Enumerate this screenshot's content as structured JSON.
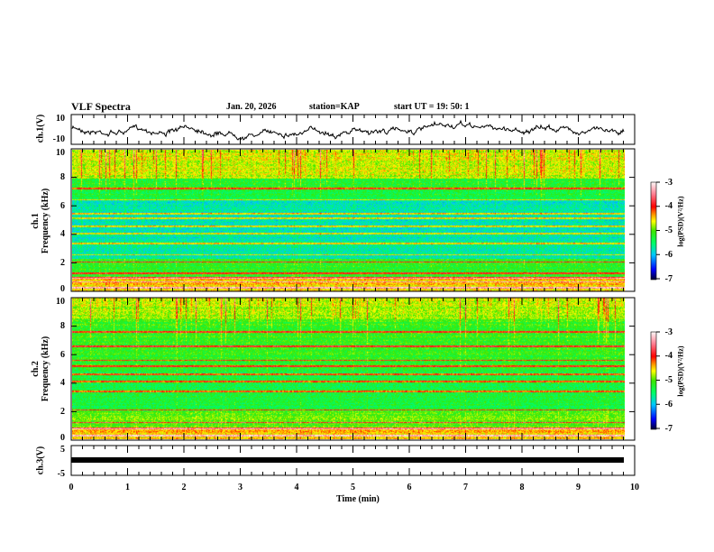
{
  "header": {
    "title": "VLF Spectra",
    "date": "Jan. 20, 2026",
    "station": "station=KAP",
    "start": "start UT =   19: 50: 1"
  },
  "chart_data": [
    {
      "type": "line",
      "name": "ch1-waveform",
      "ylabel": "ch.1(V)",
      "ylim": [
        -10,
        10
      ],
      "yticks": [
        "10",
        "-10"
      ],
      "xlim": [
        0,
        10
      ]
    },
    {
      "type": "heatmap",
      "name": "ch1-spectrogram",
      "ylabel": "ch.1 Frequency (kHz)",
      "ylim": [
        0,
        10
      ],
      "yticks": [
        "0",
        "2",
        "4",
        "6",
        "8",
        "10"
      ],
      "xlim": [
        0,
        10
      ],
      "data_end_min": 9.83,
      "colorbar": {
        "label": "log(PSD)(V²/Hz)",
        "range": [
          -7,
          -3
        ],
        "ticks": [
          "-3",
          "-4",
          "-5",
          "-6",
          "-7"
        ]
      },
      "tone_lines_khz": [
        0.3,
        0.7,
        1.0,
        1.3,
        2.1,
        2.6,
        3.4,
        4.1,
        4.6,
        5.2,
        5.5,
        6.5,
        7.3
      ]
    },
    {
      "type": "heatmap",
      "name": "ch2-spectrogram",
      "ylabel": "ch.2 Frequency (kHz)",
      "ylim": [
        0,
        10
      ],
      "yticks": [
        "0",
        "2",
        "4",
        "6",
        "8",
        "10"
      ],
      "xlim": [
        0,
        10
      ],
      "data_end_min": 9.83,
      "colorbar": {
        "label": "log(PSD)(V²/Hz)",
        "range": [
          -7,
          -3
        ],
        "ticks": [
          "-3",
          "-4",
          "-5",
          "-6",
          "-7"
        ]
      },
      "tone_lines_khz": [
        0.3,
        0.8,
        1.2,
        2.1,
        3.4,
        4.1,
        4.6,
        5.2,
        5.6,
        6.6,
        7.6
      ]
    },
    {
      "type": "line",
      "name": "ch3-waveform",
      "ylabel": "ch.3(V)",
      "ylim": [
        -5,
        5
      ],
      "yticks": [
        "5",
        "-5"
      ],
      "xlim": [
        0,
        10
      ],
      "value": 1
    },
    {
      "xlabel": "Time (min)",
      "xticks": [
        "0",
        "1",
        "2",
        "3",
        "4",
        "5",
        "6",
        "7",
        "8",
        "9",
        "10"
      ]
    }
  ]
}
